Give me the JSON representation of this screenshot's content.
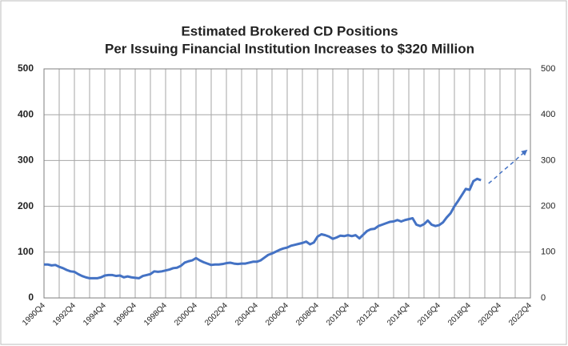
{
  "chart_data": {
    "type": "line",
    "title": [
      "Estimated Brokered CD Positions",
      "Per Issuing Financial Institution Increases to $320 Million"
    ],
    "categories": [
      "1990Q4",
      null,
      null,
      null,
      null,
      null,
      null,
      null,
      "1992Q4",
      null,
      null,
      null,
      null,
      null,
      null,
      null,
      "1994Q4",
      null,
      null,
      null,
      null,
      null,
      null,
      null,
      "1996Q4",
      null,
      null,
      null,
      null,
      null,
      null,
      null,
      "1998Q4",
      null,
      null,
      null,
      null,
      null,
      null,
      null,
      "2000Q4",
      null,
      null,
      null,
      null,
      null,
      null,
      null,
      "2002Q4",
      null,
      null,
      null,
      null,
      null,
      null,
      null,
      "2004Q4",
      null,
      null,
      null,
      null,
      null,
      null,
      null,
      "2006Q4",
      null,
      null,
      null,
      null,
      null,
      null,
      null,
      "2008Q4",
      null,
      null,
      null,
      null,
      null,
      null,
      null,
      "2010Q4",
      null,
      null,
      null,
      null,
      null,
      null,
      null,
      "2012Q4",
      null,
      null,
      null,
      null,
      null,
      null,
      null,
      "2014Q4",
      null,
      null,
      null,
      null,
      null,
      null,
      null,
      "2016Q4",
      null,
      null,
      null,
      null,
      null,
      null,
      null,
      "2018Q4",
      null,
      null,
      null,
      null,
      null,
      null,
      null,
      "2020Q4",
      null,
      null,
      null,
      null,
      null,
      null,
      null,
      "2022Q4"
    ],
    "series": [
      {
        "color": "#4472c4",
        "style": "solid",
        "values": [
          73,
          73,
          71,
          72,
          68,
          65,
          61,
          58,
          57,
          52,
          48,
          45,
          43,
          43,
          43,
          45,
          49,
          50,
          50,
          48,
          49,
          45,
          47,
          45,
          44,
          43,
          48,
          50,
          52,
          58,
          57,
          58,
          60,
          62,
          65,
          66,
          70,
          77,
          80,
          82,
          87,
          82,
          78,
          75,
          72,
          73,
          73,
          74,
          76,
          77,
          75,
          74,
          75,
          75,
          77,
          79,
          79,
          82,
          88,
          94,
          97,
          101,
          105,
          108,
          110,
          114,
          116,
          118,
          120,
          123,
          117,
          121,
          134,
          139,
          137,
          134,
          129,
          132,
          136,
          135,
          137,
          135,
          137,
          130,
          138,
          146,
          150,
          151,
          157,
          160,
          163,
          166,
          167,
          170,
          167,
          170,
          172,
          174,
          160,
          157,
          161,
          169,
          160,
          157,
          159,
          165,
          176,
          185,
          200,
          212,
          225,
          238,
          236,
          255,
          260,
          257,
          null,
          null,
          null,
          null,
          null,
          null,
          null,
          null,
          null,
          null,
          null,
          null,
          null
        ]
      },
      {
        "color": "#4472c4",
        "style": "dashed",
        "values": [
          null,
          null,
          null,
          null,
          null,
          null,
          null,
          null,
          null,
          null,
          null,
          null,
          null,
          null,
          null,
          null,
          null,
          null,
          null,
          null,
          null,
          null,
          null,
          null,
          null,
          null,
          null,
          null,
          null,
          null,
          null,
          null,
          null,
          null,
          null,
          null,
          null,
          null,
          null,
          null,
          null,
          null,
          null,
          null,
          null,
          null,
          null,
          null,
          null,
          null,
          null,
          null,
          null,
          null,
          null,
          null,
          null,
          null,
          null,
          null,
          null,
          null,
          null,
          null,
          null,
          null,
          null,
          null,
          null,
          null,
          null,
          null,
          null,
          null,
          null,
          null,
          null,
          null,
          null,
          null,
          null,
          null,
          null,
          null,
          null,
          null,
          null,
          null,
          null,
          null,
          null,
          null,
          null,
          null,
          null,
          null,
          null,
          null,
          null,
          null,
          null,
          null,
          null,
          null,
          null,
          null,
          null,
          null,
          null,
          null,
          null,
          null,
          null,
          null,
          null,
          null,
          null,
          250,
          257,
          264,
          272,
          279,
          286,
          293,
          300,
          308,
          315,
          322,
          null
        ]
      }
    ],
    "ylim": [
      0,
      500
    ],
    "yticks": [
      0,
      100,
      200,
      300,
      400,
      500
    ],
    "y2lim": [
      0,
      500
    ],
    "y2ticks": [
      0,
      100,
      200,
      300,
      400,
      500
    ],
    "grid": true
  }
}
